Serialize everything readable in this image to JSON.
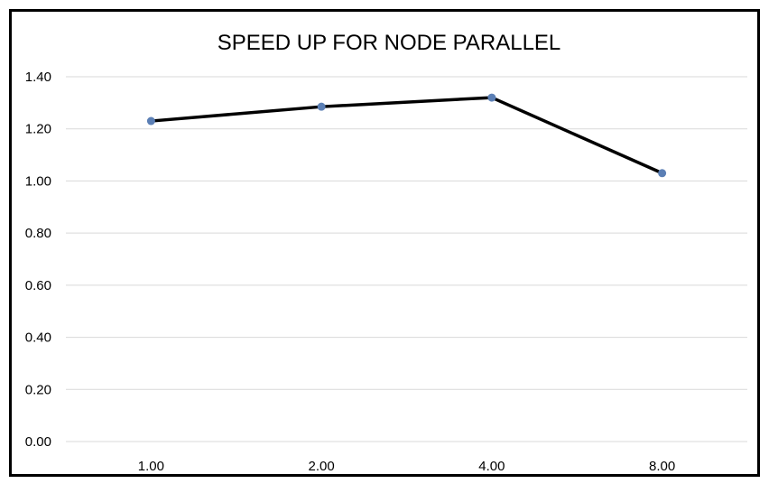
{
  "chart_data": {
    "type": "line",
    "title": "SPEED UP FOR NODE PARALLEL",
    "categories": [
      "1.00",
      "2.00",
      "4.00",
      "8.00"
    ],
    "series": [
      {
        "values": [
          1.23,
          1.285,
          1.32,
          1.03
        ]
      }
    ],
    "y_ticks": [
      "0.00",
      "0.20",
      "0.40",
      "0.60",
      "0.80",
      "1.00",
      "1.20",
      "1.40"
    ],
    "ylim": [
      0,
      1.4
    ],
    "grid": "horizontal",
    "line_color": "#000000",
    "marker_color": "#5b7fb5",
    "gridline_color": "#d9d9d9"
  }
}
